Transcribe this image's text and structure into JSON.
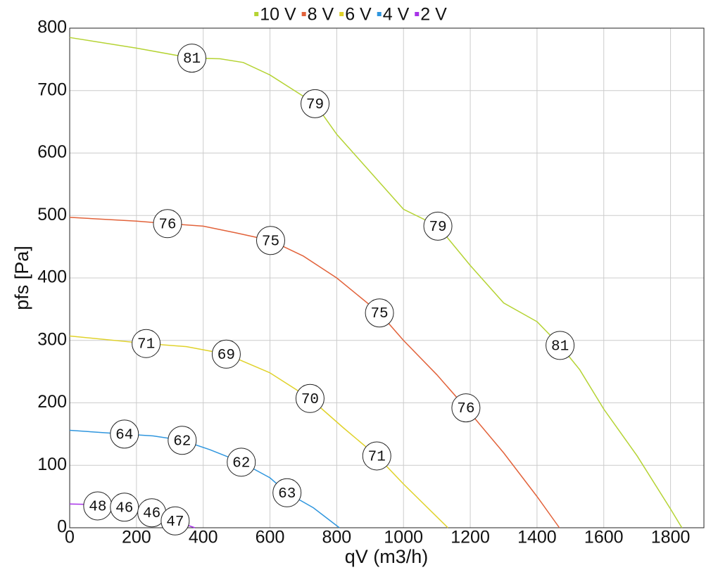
{
  "chart_data": {
    "type": "line",
    "xlabel": "qV (m3/h)",
    "ylabel": "pfs [Pa]",
    "xlim": [
      0,
      1900
    ],
    "ylim": [
      0,
      800
    ],
    "xticks": [
      0,
      200,
      400,
      600,
      800,
      1000,
      1200,
      1400,
      1600,
      1800
    ],
    "yticks": [
      0,
      100,
      200,
      300,
      400,
      500,
      600,
      700,
      800
    ],
    "grid": true,
    "legend": "top",
    "series": [
      {
        "name": "10 V",
        "color": "#b5d333",
        "x": [
          0,
          200,
          366,
          450,
          520,
          600,
          735,
          800,
          900,
          1000,
          1103,
          1200,
          1300,
          1400,
          1469,
          1528,
          1600,
          1700,
          1800,
          1834
        ],
        "values": [
          785,
          768,
          752,
          751,
          745,
          725,
          679,
          630,
          570,
          510,
          483,
          420,
          360,
          330,
          292,
          253,
          190,
          115,
          30,
          0
        ],
        "annotations": [
          {
            "x": 366,
            "y": 752,
            "label": 81
          },
          {
            "x": 735,
            "y": 679,
            "label": 79
          },
          {
            "x": 1103,
            "y": 483,
            "label": 79
          },
          {
            "x": 1469,
            "y": 292,
            "label": 81
          }
        ]
      },
      {
        "name": "8 V",
        "color": "#e2623a",
        "x": [
          0,
          200,
          293,
          400,
          500,
          602,
          700,
          800,
          928,
          1000,
          1100,
          1187,
          1300,
          1400,
          1467
        ],
        "values": [
          497,
          491,
          487,
          483,
          472,
          460,
          435,
          400,
          344,
          300,
          245,
          192,
          120,
          50,
          0
        ],
        "annotations": [
          {
            "x": 293,
            "y": 487,
            "label": 76
          },
          {
            "x": 602,
            "y": 460,
            "label": 75
          },
          {
            "x": 928,
            "y": 344,
            "label": 75
          },
          {
            "x": 1187,
            "y": 192,
            "label": 76
          }
        ]
      },
      {
        "name": "6 V",
        "color": "#e0d22a",
        "x": [
          0,
          229,
          350,
          469,
          600,
          720,
          820,
          920,
          1000,
          1133
        ],
        "values": [
          307,
          295,
          290,
          278,
          248,
          207,
          160,
          115,
          70,
          0
        ],
        "annotations": [
          {
            "x": 229,
            "y": 295,
            "label": 71
          },
          {
            "x": 469,
            "y": 278,
            "label": 69
          },
          {
            "x": 720,
            "y": 207,
            "label": 70
          },
          {
            "x": 920,
            "y": 115,
            "label": 71
          }
        ]
      },
      {
        "name": "4 V",
        "color": "#2f96de",
        "x": [
          0,
          164,
          250,
          337,
          420,
          514,
          600,
          651,
          730,
          808
        ],
        "values": [
          156,
          150,
          147,
          140,
          125,
          105,
          80,
          56,
          32,
          0
        ],
        "annotations": [
          {
            "x": 164,
            "y": 150,
            "label": 64
          },
          {
            "x": 337,
            "y": 140,
            "label": 62
          },
          {
            "x": 514,
            "y": 105,
            "label": 62
          },
          {
            "x": 651,
            "y": 56,
            "label": 63
          }
        ]
      },
      {
        "name": "2 V",
        "color": "#a833e8",
        "x": [
          0,
          84,
          164,
          246,
          316,
          375
        ],
        "values": [
          38,
          37,
          33,
          24,
          11,
          0
        ],
        "annotations": [
          {
            "x": 84,
            "y": 35,
            "label": 48
          },
          {
            "x": 164,
            "y": 33,
            "label": 46
          },
          {
            "x": 246,
            "y": 24,
            "label": 46
          },
          {
            "x": 316,
            "y": 11,
            "label": 47
          }
        ]
      }
    ]
  }
}
